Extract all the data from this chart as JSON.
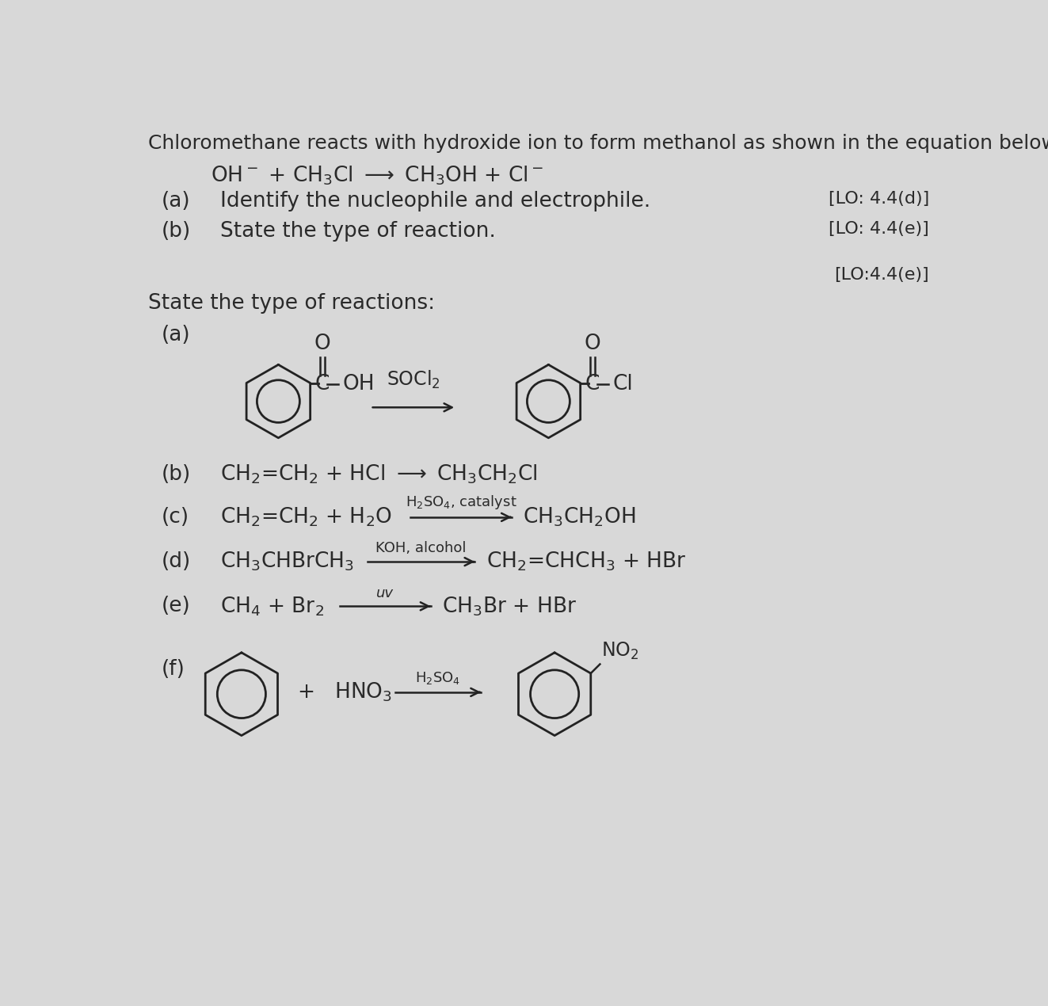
{
  "bg_color": "#d8d8d8",
  "text_color": "#2a2a2a",
  "title": "Chloromethane reacts with hydroxide ion to form methanol as shown in the equation below.",
  "part_a_lo": "[LO: 4.4(d)]",
  "part_b_lo": "[LO: 4.4(e)]",
  "lo_third": "[LO:4.4(e)]",
  "state_type": "State the type of reactions:",
  "fs_title": 18,
  "fs_main": 19,
  "fs_lo": 16,
  "fs_small": 13
}
